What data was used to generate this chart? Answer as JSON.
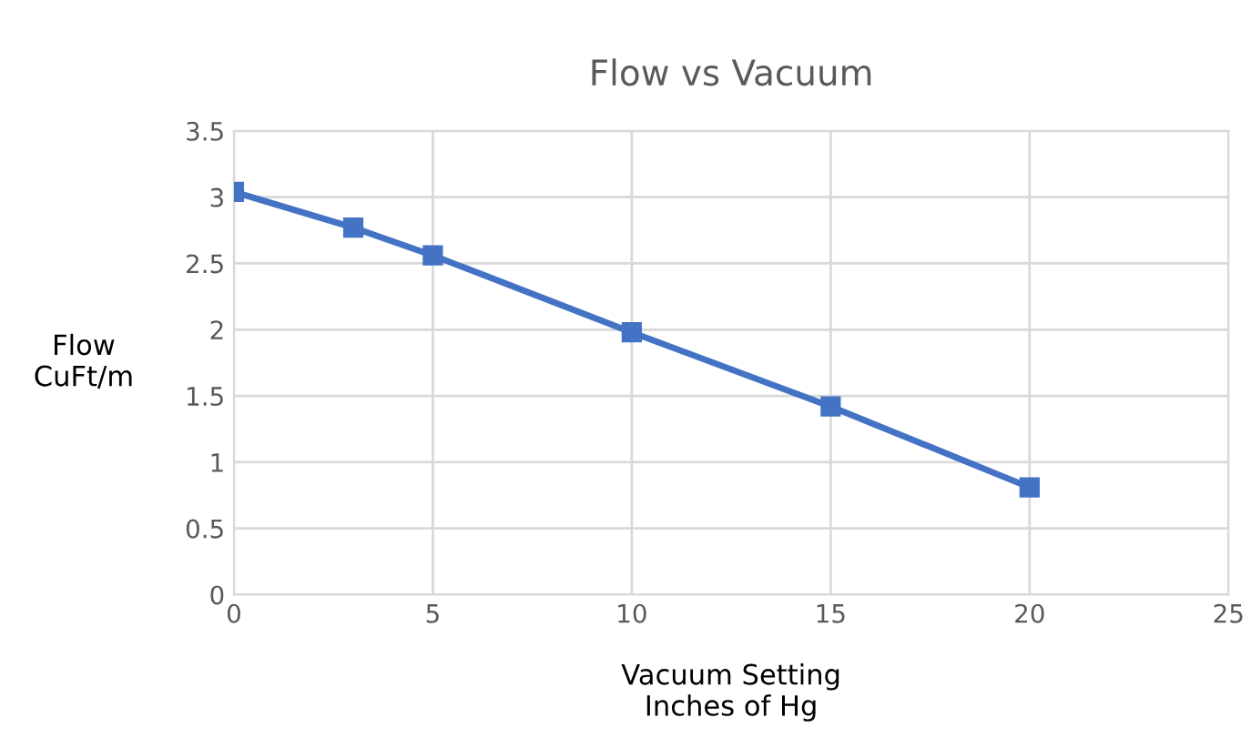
{
  "chart_data": {
    "type": "line",
    "title": "Flow vs Vacuum",
    "xlabel": "Vacuum Setting\nInches of Hg",
    "ylabel": "Flow\nCuFt/m",
    "x": [
      0,
      3,
      5,
      10,
      15,
      20
    ],
    "series": [
      {
        "color": "#4472c4",
        "values": [
          3.04,
          2.77,
          2.56,
          1.98,
          1.42,
          0.81
        ]
      }
    ],
    "xlim": [
      0,
      25
    ],
    "xticks": [
      0,
      5,
      10,
      15,
      20,
      25
    ],
    "ylim": [
      0,
      3.5
    ],
    "yticks": [
      0,
      0.5,
      1,
      1.5,
      2,
      2.5,
      3,
      3.5
    ],
    "grid": true,
    "marker": "square",
    "line_style": "solid",
    "legend": false
  }
}
